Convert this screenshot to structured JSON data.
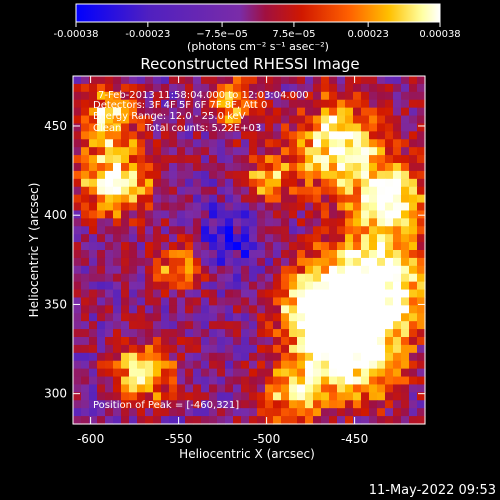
{
  "chart_data": {
    "type": "heatmap",
    "title": "Reconstructed RHESSI Image",
    "xlabel": "Heliocentric X (arcsec)",
    "ylabel": "Heliocentric Y (arcsec)",
    "xlim": [
      -610,
      -410
    ],
    "ylim": [
      283,
      478
    ],
    "xticks": [
      "-600",
      "-550",
      "-500",
      "-450"
    ],
    "xtick_values": [
      -600,
      -550,
      -500,
      -450
    ],
    "yticks": [
      "300",
      "350",
      "400",
      "450"
    ],
    "ytick_values": [
      300,
      350,
      400,
      450
    ],
    "colorbar": {
      "ticks": [
        "-0.00038",
        "-0.00023",
        "−7.5e−05",
        "7.5e−05",
        "0.00023",
        "0.00038"
      ],
      "tick_values": [
        -0.00038,
        -0.00023,
        -7.5e-05,
        7.5e-05,
        0.00023,
        0.00038
      ],
      "range": [
        -0.00038,
        0.00038
      ],
      "unit_label": "(photons cm⁻² s⁻¹ asec⁻²)",
      "colors": [
        "#0000ff",
        "#5020c0",
        "#7a2ca8",
        "#a01040",
        "#d01800",
        "#ff6000",
        "#ffc000",
        "#ffffa0",
        "#ffffff"
      ]
    },
    "annotations": {
      "time_range": "7-Feb-2013 11:58:04.000 to 12:03:04.000",
      "detectors": "Detectors: 3F 4F 5F 6F 7F 8F, Att 0",
      "energy": "Energy Range: 12.0 - 25.0 keV",
      "method": "Clean",
      "counts": "Total counts: 5.22E+03",
      "peak": "Position of Peak = [-460,321]"
    },
    "peak_position": [
      -460,
      321
    ],
    "grid": false
  },
  "footer": {
    "date": "11-May-2022 09:53"
  }
}
